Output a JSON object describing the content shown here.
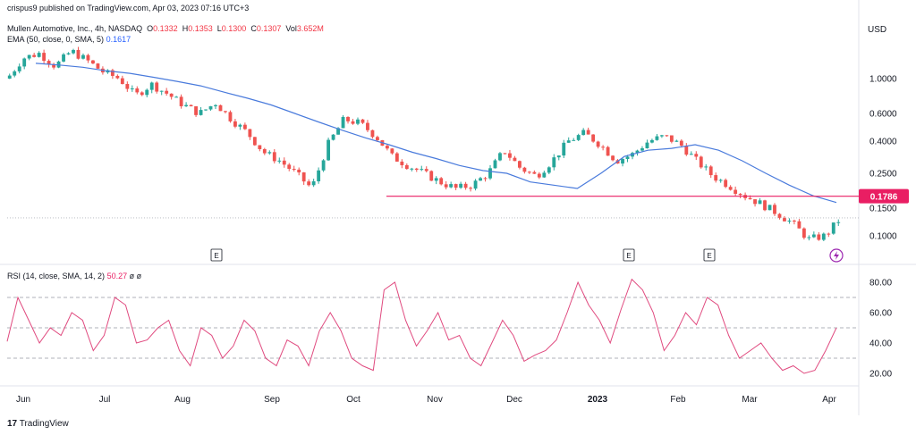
{
  "header": {
    "published": "crispus9 published on TradingView.com, Apr 03, 2023 07:16 UTC+3",
    "symbol": "Mullen Automotive, Inc., 4h, NASDAQ",
    "ohlc": {
      "o_label": "O",
      "o": "0.1332",
      "h_label": "H",
      "h": "0.1353",
      "l_label": "L",
      "l": "0.1300",
      "c_label": "C",
      "c": "0.1307",
      "vol_label": "Vol",
      "vol": "3.652M"
    },
    "ema_label": "EMA (50, close, 0, SMA, 5)",
    "ema_value": "0.1617",
    "currency": "USD"
  },
  "rsi_header": {
    "label": "RSI (14, close, SMA, 14, 2)",
    "value": "50.27",
    "extra1": "ø",
    "extra2": "ø"
  },
  "footer": {
    "brand": "TradingView"
  },
  "colors": {
    "up": "#26a69a",
    "down": "#ef5350",
    "ema": "#4a7bdc",
    "rsi": "#e04a7f",
    "level": "#e91e63",
    "grid": "#e0e3eb"
  },
  "earnings_marker": "E",
  "price_line": {
    "value": 0.1786,
    "label": "0.1786"
  },
  "chart_data": [
    {
      "type": "line",
      "title": "Mullen Automotive, Inc., 4h, NASDAQ",
      "y_scale": "log",
      "y_ticks": [
        1.0,
        0.6,
        0.4,
        0.25,
        0.15,
        0.1
      ],
      "y_tick_labels": [
        "1.0000",
        "0.6000",
        "0.4000",
        "0.2500",
        "0.1500",
        "0.1000"
      ],
      "x_tick_labels": [
        "Jun",
        "Jul",
        "Aug",
        "Sep",
        "Oct",
        "Nov",
        "Dec",
        "2023",
        "Feb",
        "Mar",
        "Apr"
      ],
      "earnings_at": [
        "Jul",
        "Jan",
        "Feb"
      ],
      "series": [
        {
          "name": "Price",
          "values": [
            1.0,
            1.35,
            1.45,
            1.2,
            1.5,
            1.3,
            1.1,
            1.0,
            0.78,
            0.92,
            0.8,
            0.68,
            0.6,
            0.7,
            0.55,
            0.45,
            0.34,
            0.3,
            0.25,
            0.2,
            0.38,
            0.55,
            0.52,
            0.43,
            0.32,
            0.28,
            0.25,
            0.22,
            0.2,
            0.21,
            0.25,
            0.35,
            0.27,
            0.24,
            0.3,
            0.4,
            0.45,
            0.38,
            0.3,
            0.33,
            0.4,
            0.43,
            0.38,
            0.3,
            0.24,
            0.21,
            0.18,
            0.16,
            0.14,
            0.12,
            0.095,
            0.1,
            0.13
          ]
        },
        {
          "name": "EMA",
          "values": [
            1.25,
            1.22,
            1.18,
            1.12,
            1.08,
            1.02,
            0.96,
            0.9,
            0.82,
            0.75,
            0.68,
            0.6,
            0.53,
            0.47,
            0.42,
            0.38,
            0.34,
            0.31,
            0.28,
            0.26,
            0.25,
            0.22,
            0.21,
            0.2,
            0.25,
            0.32,
            0.35,
            0.36,
            0.38,
            0.35,
            0.3,
            0.25,
            0.21,
            0.18,
            0.163
          ]
        }
      ]
    },
    {
      "type": "line",
      "title": "RSI (14, close, SMA, 14, 2)",
      "ylim": [
        10,
        90
      ],
      "y_ticks": [
        80,
        60,
        40,
        20
      ],
      "y_tick_labels": [
        "80.00",
        "60.00",
        "40.00",
        "20.00"
      ],
      "bands": [
        70,
        50,
        30
      ],
      "x_tick_labels": [
        "Jun",
        "Jul",
        "Aug",
        "Sep",
        "Oct",
        "Nov",
        "Dec",
        "2023",
        "Feb",
        "Mar",
        "Apr"
      ],
      "series": [
        {
          "name": "RSI",
          "values": [
            41,
            70,
            55,
            40,
            50,
            45,
            60,
            55,
            35,
            45,
            70,
            65,
            40,
            42,
            50,
            55,
            35,
            25,
            50,
            45,
            30,
            38,
            55,
            48,
            30,
            25,
            42,
            38,
            25,
            48,
            60,
            48,
            30,
            25,
            22,
            75,
            80,
            55,
            38,
            48,
            60,
            42,
            45,
            30,
            25,
            40,
            55,
            45,
            28,
            32,
            35,
            42,
            60,
            80,
            65,
            55,
            40,
            62,
            82,
            75,
            60,
            35,
            45,
            60,
            52,
            70,
            65,
            45,
            30,
            35,
            40,
            30,
            22,
            25,
            20,
            22,
            35,
            50
          ]
        }
      ]
    }
  ]
}
